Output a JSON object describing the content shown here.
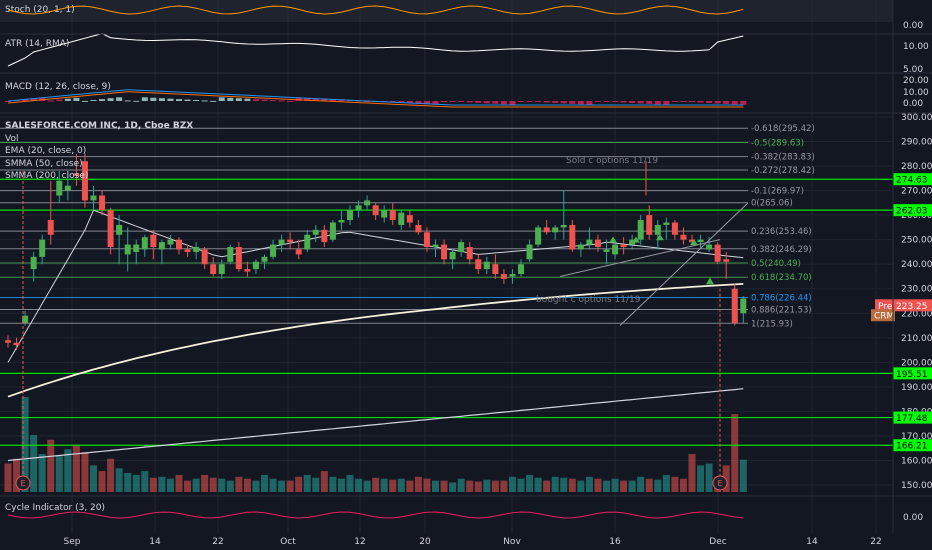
{
  "chart_data": {
    "type": "candlestick",
    "symbol_title": "SALESFORCE.COM INC, 1D, Cboe BZX",
    "ticker": "CRM",
    "x_tick_labels": [
      "Sep",
      "8",
      "14",
      "22",
      "Oct",
      "12",
      "20",
      "Nov",
      "16",
      "24",
      "Dec",
      "14",
      "22"
    ],
    "price_axis": {
      "min": 145,
      "max": 300,
      "ticks": [
        300,
        290,
        280,
        270,
        260,
        250,
        240,
        230,
        220,
        210,
        200,
        190,
        180,
        170,
        160,
        150
      ]
    },
    "price_axis_tick_labels": [
      "300.00",
      "290.00",
      "280.00",
      "270.00",
      "260.00",
      "250.00",
      "240.00",
      "230.00",
      "220.00",
      "210.00",
      "200.00",
      "190.00",
      "180.00",
      "170.00",
      "160.00",
      "150.00"
    ],
    "indicators": {
      "stoch": {
        "label": "Stoch (20, 1, 1)",
        "tick_labels": [
          "0.00"
        ]
      },
      "atr": {
        "label": "ATR (14, RMA)",
        "tick_labels": [
          "10.00",
          "5.00"
        ]
      },
      "macd": {
        "label": "MACD (12, 26, close, 9)",
        "tick_labels": [
          "20.00",
          "10.00",
          "0.00"
        ]
      },
      "cycle": {
        "label": "Cycle Indicator (3, 20)",
        "tick_labels": [
          "0.00"
        ]
      }
    },
    "legend_lines": [
      "Vol",
      "EMA (20, close, 0)",
      "SMMA (50, close)",
      "SMMA (200, close)"
    ],
    "fib_levels": [
      {
        "label": "-0.618(295.42)",
        "value": 295.42
      },
      {
        "label": "-0.5(289.63)",
        "value": 289.63
      },
      {
        "label": "-0.382(283.83)",
        "value": 283.83
      },
      {
        "label": "-0.272(278.42)",
        "value": 278.42
      },
      {
        "label": "-0.1(269.97)",
        "value": 269.97
      },
      {
        "label": "0(265.06)",
        "value": 265.06
      },
      {
        "label": "0.236(253.46)",
        "value": 253.46
      },
      {
        "label": "0.382(246.29)",
        "value": 246.29
      },
      {
        "label": "0.5(240.49)",
        "value": 240.49
      },
      {
        "label": "0.618(234.70)",
        "value": 234.7
      },
      {
        "label": "0.786(226.44)",
        "value": 226.44
      },
      {
        "label": "0.886(221.53)",
        "value": 221.53
      },
      {
        "label": "1(215.93)",
        "value": 215.93
      }
    ],
    "annotations": [
      "Sold c options 11/19",
      "bought c options 11/19"
    ],
    "price_badges": [
      {
        "label": "274.63",
        "value": 274.63,
        "color": "#00ff00"
      },
      {
        "label": "262.03",
        "value": 262.03,
        "color": "#00ff00"
      },
      {
        "label": "223.25",
        "value": 223.25,
        "color": "#ef5350",
        "prefix": "Pre"
      },
      {
        "label": "CRM",
        "value": 219.2,
        "color": "#b86c3d"
      },
      {
        "label": "195.51",
        "value": 195.51,
        "color": "#00ff00"
      },
      {
        "label": "177.48",
        "value": 177.48,
        "color": "#00ff00"
      },
      {
        "label": "166.21",
        "value": 166.21,
        "color": "#00ff00"
      }
    ],
    "horizontal_lines": [
      274.63,
      262.03,
      195.51,
      177.48,
      166.21
    ],
    "candles": [
      [
        209,
        211,
        206,
        208
      ],
      [
        208,
        210,
        205,
        207
      ],
      [
        216,
        221,
        215,
        219
      ],
      [
        238,
        245,
        233,
        243
      ],
      [
        243,
        252,
        240,
        250
      ],
      [
        258,
        274,
        248,
        252
      ],
      [
        268,
        278,
        265,
        274
      ],
      [
        270,
        278,
        266,
        272
      ],
      [
        277,
        285,
        272,
        276
      ],
      [
        282,
        285,
        263,
        266
      ],
      [
        266,
        272,
        262,
        268
      ],
      [
        268,
        270,
        260,
        262
      ],
      [
        262,
        263,
        244,
        247
      ],
      [
        252,
        260,
        240,
        256
      ],
      [
        244,
        255,
        237,
        248
      ],
      [
        245,
        250,
        240,
        248
      ],
      [
        246,
        252,
        243,
        251
      ],
      [
        252,
        254,
        242,
        247
      ],
      [
        246,
        250,
        240,
        249
      ],
      [
        248,
        252,
        246,
        250
      ],
      [
        250,
        251,
        244,
        246
      ],
      [
        246,
        248,
        243,
        245
      ],
      [
        245,
        249,
        242,
        247
      ],
      [
        246,
        247,
        238,
        240
      ],
      [
        240,
        243,
        235,
        236
      ],
      [
        236,
        242,
        234,
        240
      ],
      [
        241,
        248,
        240,
        247
      ],
      [
        247,
        249,
        237,
        238
      ],
      [
        238,
        241,
        235,
        237
      ],
      [
        238,
        242,
        236,
        241
      ],
      [
        241,
        244,
        238,
        243
      ],
      [
        243,
        250,
        242,
        248
      ],
      [
        248,
        252,
        245,
        250
      ],
      [
        250,
        253,
        246,
        249
      ],
      [
        246,
        250,
        242,
        244
      ],
      [
        246,
        254,
        245,
        252
      ],
      [
        252,
        256,
        249,
        254
      ],
      [
        254,
        256,
        247,
        249
      ],
      [
        250,
        258,
        249,
        257
      ],
      [
        257,
        262,
        254,
        258
      ],
      [
        258,
        264,
        256,
        262
      ],
      [
        262,
        266,
        259,
        264
      ],
      [
        264,
        268,
        262,
        266
      ],
      [
        264,
        265,
        258,
        260
      ],
      [
        259,
        264,
        257,
        262
      ],
      [
        262,
        265,
        256,
        258
      ],
      [
        256,
        262,
        254,
        261
      ],
      [
        260,
        262,
        255,
        257
      ],
      [
        256,
        258,
        252,
        253
      ],
      [
        253,
        255,
        245,
        247
      ],
      [
        247,
        250,
        243,
        248
      ],
      [
        248,
        250,
        240,
        242
      ],
      [
        242,
        246,
        238,
        245
      ],
      [
        245,
        250,
        243,
        249
      ],
      [
        247,
        249,
        240,
        242
      ],
      [
        242,
        244,
        236,
        238
      ],
      [
        238,
        243,
        236,
        241
      ],
      [
        240,
        244,
        234,
        236
      ],
      [
        236,
        238,
        232,
        234
      ],
      [
        235,
        238,
        232,
        236
      ],
      [
        236,
        242,
        235,
        240
      ],
      [
        242,
        250,
        241,
        248
      ],
      [
        248,
        256,
        247,
        255
      ],
      [
        255,
        258,
        252,
        253
      ],
      [
        253,
        256,
        250,
        255
      ],
      [
        255,
        270,
        250,
        256
      ],
      [
        256,
        258,
        245,
        246
      ],
      [
        246,
        249,
        243,
        248
      ],
      [
        248,
        255,
        246,
        250
      ],
      [
        250,
        252,
        245,
        247
      ],
      [
        245,
        250,
        240,
        246
      ],
      [
        244,
        250,
        242,
        248
      ],
      [
        248,
        251,
        244,
        247
      ],
      [
        248,
        252,
        246,
        250
      ],
      [
        250,
        260,
        248,
        258
      ],
      [
        260,
        264,
        250,
        252
      ],
      [
        252,
        258,
        246,
        256
      ],
      [
        256,
        259,
        250,
        257
      ],
      [
        257,
        258,
        250,
        252
      ],
      [
        252,
        255,
        248,
        250
      ],
      [
        250,
        252,
        248,
        249
      ],
      [
        249,
        252,
        246,
        250
      ],
      [
        246,
        251,
        245,
        248
      ],
      [
        248,
        249,
        240,
        241
      ],
      [
        242,
        245,
        234,
        241
      ],
      [
        230,
        232,
        215,
        216
      ],
      [
        220,
        227,
        216,
        226
      ]
    ],
    "volume_axis_max": 100
  }
}
